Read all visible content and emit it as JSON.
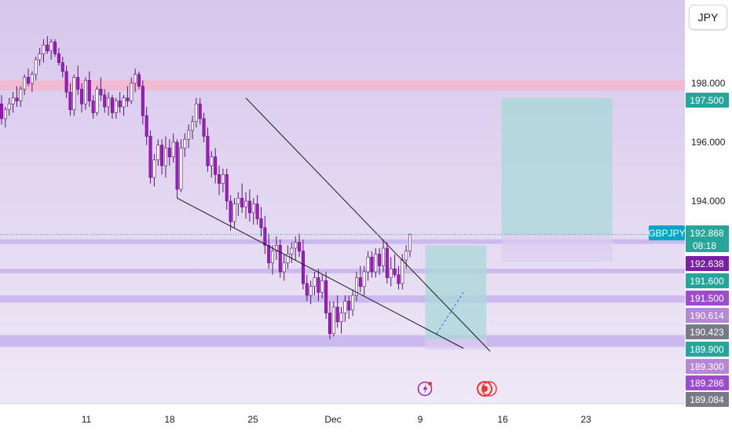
{
  "currency_button": "JPY",
  "symbol_label": "GBPJPY",
  "countdown": "08:18",
  "colors": {
    "background_top": "#d7c7ec",
    "background_bottom": "#efe8f7",
    "resistance_zone": "#f2b8cf",
    "support_band": "#c8b3eb",
    "bull_body": "#ffffff",
    "bear_body": "#a516c8",
    "wick": "#5a1670",
    "profit_zone": "#a8d8d8",
    "stop_zone": "#dccdf1",
    "last_price_line": "#26a69a",
    "price_badge": "#26a69a",
    "symbol_badge": "#00a6c8"
  },
  "chart_data": {
    "type": "candlestick",
    "symbol": "GBPJPY",
    "currency": "JPY",
    "y_axis": {
      "ticks": [
        198.0,
        196.0,
        194.0
      ],
      "tick_labels": [
        "198.000",
        "196.000",
        "194.000"
      ],
      "range": [
        188.9,
        200.7
      ]
    },
    "x_axis": {
      "tick_labels": [
        "11",
        "18",
        "25",
        "Dec",
        "9",
        "16",
        "23"
      ]
    },
    "candles_ohlc": [
      [
        197.3,
        197.6,
        196.6,
        196.8
      ],
      [
        196.8,
        197.2,
        196.5,
        197.1
      ],
      [
        197.1,
        197.5,
        196.9,
        197.3
      ],
      [
        197.3,
        197.7,
        197.0,
        197.5
      ],
      [
        197.5,
        197.9,
        197.2,
        197.4
      ],
      [
        197.4,
        197.9,
        197.2,
        197.8
      ],
      [
        197.8,
        198.3,
        197.6,
        198.2
      ],
      [
        198.2,
        198.5,
        197.9,
        198.0
      ],
      [
        198.0,
        198.4,
        197.7,
        198.3
      ],
      [
        198.3,
        198.9,
        198.1,
        198.8
      ],
      [
        198.8,
        199.2,
        198.6,
        199.0
      ],
      [
        199.0,
        199.5,
        198.7,
        199.3
      ],
      [
        199.3,
        199.6,
        199.0,
        199.1
      ],
      [
        199.1,
        199.5,
        198.8,
        199.4
      ],
      [
        199.4,
        199.5,
        198.9,
        199.0
      ],
      [
        199.0,
        199.2,
        198.6,
        198.7
      ],
      [
        198.7,
        198.9,
        198.2,
        198.4
      ],
      [
        198.4,
        198.6,
        197.5,
        197.7
      ],
      [
        197.7,
        198.0,
        196.9,
        197.1
      ],
      [
        197.1,
        198.3,
        196.9,
        198.2
      ],
      [
        198.2,
        198.6,
        197.6,
        197.8
      ],
      [
        197.8,
        198.0,
        197.0,
        197.3
      ],
      [
        197.3,
        198.2,
        197.1,
        198.1
      ],
      [
        198.1,
        198.4,
        197.2,
        197.4
      ],
      [
        197.4,
        197.6,
        196.8,
        197.0
      ],
      [
        197.0,
        197.9,
        196.9,
        197.8
      ],
      [
        197.8,
        198.2,
        197.4,
        197.6
      ],
      [
        197.6,
        197.8,
        197.0,
        197.2
      ],
      [
        197.2,
        197.7,
        196.9,
        197.5
      ],
      [
        197.5,
        197.6,
        196.8,
        197.0
      ],
      [
        197.0,
        197.5,
        196.8,
        197.4
      ],
      [
        197.4,
        197.7,
        197.0,
        197.2
      ],
      [
        197.2,
        197.6,
        196.9,
        197.5
      ],
      [
        197.5,
        197.9,
        197.2,
        197.4
      ],
      [
        197.4,
        198.2,
        197.3,
        198.0
      ],
      [
        198.0,
        198.5,
        197.7,
        198.3
      ],
      [
        198.3,
        198.4,
        197.8,
        197.9
      ],
      [
        197.9,
        198.1,
        196.6,
        196.9
      ],
      [
        196.9,
        197.2,
        195.9,
        196.2
      ],
      [
        196.2,
        196.4,
        194.6,
        194.8
      ],
      [
        194.8,
        195.6,
        194.5,
        195.4
      ],
      [
        195.4,
        196.1,
        195.2,
        195.9
      ],
      [
        195.9,
        196.1,
        194.9,
        195.2
      ],
      [
        195.2,
        196.2,
        194.8,
        195.8
      ],
      [
        195.8,
        196.1,
        195.2,
        195.5
      ],
      [
        195.5,
        196.3,
        195.3,
        196.0
      ],
      [
        196.0,
        196.1,
        194.1,
        194.4
      ],
      [
        194.4,
        196.1,
        194.3,
        195.8
      ],
      [
        195.8,
        196.3,
        195.5,
        196.1
      ],
      [
        196.1,
        196.6,
        195.8,
        196.4
      ],
      [
        196.4,
        196.9,
        196.1,
        196.7
      ],
      [
        196.7,
        197.5,
        196.5,
        197.3
      ],
      [
        197.3,
        197.5,
        196.6,
        196.8
      ],
      [
        196.8,
        197.0,
        196.0,
        196.2
      ],
      [
        196.2,
        196.5,
        195.0,
        195.2
      ],
      [
        195.2,
        195.7,
        194.8,
        195.5
      ],
      [
        195.5,
        195.8,
        194.6,
        194.9
      ],
      [
        194.9,
        195.2,
        194.2,
        194.6
      ],
      [
        194.6,
        195.1,
        194.3,
        194.9
      ],
      [
        194.9,
        195.1,
        193.7,
        194.0
      ],
      [
        194.0,
        194.2,
        193.0,
        193.3
      ],
      [
        193.3,
        194.1,
        193.1,
        193.9
      ],
      [
        193.9,
        194.3,
        193.5,
        194.1
      ],
      [
        194.1,
        194.6,
        193.6,
        193.8
      ],
      [
        193.8,
        194.3,
        193.4,
        194.0
      ],
      [
        194.0,
        194.4,
        193.3,
        193.6
      ],
      [
        193.6,
        194.1,
        193.2,
        193.9
      ],
      [
        193.9,
        194.2,
        193.2,
        193.4
      ],
      [
        193.4,
        193.8,
        192.8,
        193.1
      ],
      [
        193.1,
        193.5,
        192.2,
        192.5
      ],
      [
        192.5,
        192.9,
        191.7,
        191.9
      ],
      [
        191.9,
        192.5,
        191.5,
        192.3
      ],
      [
        192.3,
        192.8,
        192.0,
        192.5
      ],
      [
        192.5,
        192.7,
        191.4,
        191.6
      ],
      [
        191.6,
        192.2,
        191.3,
        191.9
      ],
      [
        191.9,
        192.5,
        191.7,
        192.2
      ],
      [
        192.2,
        192.6,
        191.9,
        192.4
      ],
      [
        192.4,
        192.8,
        192.0,
        192.6
      ],
      [
        192.6,
        192.9,
        192.1,
        192.3
      ],
      [
        192.3,
        192.7,
        191.0,
        191.2
      ],
      [
        191.2,
        191.5,
        190.6,
        190.8
      ],
      [
        190.8,
        191.3,
        190.5,
        191.1
      ],
      [
        191.1,
        191.6,
        190.8,
        191.4
      ],
      [
        191.4,
        191.7,
        190.6,
        190.9
      ],
      [
        190.9,
        191.5,
        190.7,
        191.3
      ],
      [
        191.3,
        191.6,
        190.0,
        190.2
      ],
      [
        190.2,
        190.6,
        189.3,
        189.5
      ],
      [
        189.5,
        190.6,
        189.4,
        190.4
      ],
      [
        190.4,
        190.8,
        189.7,
        189.9
      ],
      [
        189.9,
        190.4,
        189.5,
        190.2
      ],
      [
        190.2,
        190.8,
        189.9,
        190.6
      ],
      [
        190.6,
        190.8,
        190.0,
        190.3
      ],
      [
        190.3,
        191.0,
        190.1,
        190.8
      ],
      [
        190.8,
        191.6,
        190.6,
        191.4
      ],
      [
        191.4,
        191.8,
        190.9,
        191.1
      ],
      [
        191.1,
        191.8,
        190.8,
        191.6
      ],
      [
        191.6,
        192.3,
        191.3,
        192.1
      ],
      [
        192.1,
        192.3,
        191.4,
        191.6
      ],
      [
        191.6,
        192.4,
        191.4,
        192.2
      ],
      [
        192.2,
        192.4,
        191.5,
        191.8
      ],
      [
        191.8,
        192.7,
        191.6,
        192.4
      ],
      [
        192.4,
        192.6,
        191.2,
        191.4
      ],
      [
        191.4,
        192.1,
        191.1,
        191.7
      ],
      [
        191.7,
        192.2,
        191.4,
        191.5
      ],
      [
        191.5,
        191.8,
        191.0,
        191.2
      ],
      [
        191.2,
        192.2,
        191.0,
        192.0
      ],
      [
        192.0,
        192.5,
        191.7,
        192.3
      ],
      [
        192.3,
        192.9,
        192.1,
        192.87
      ]
    ],
    "resistance_zone": [
      197.75,
      198.1
    ],
    "support_bands": [
      [
        192.55,
        192.7
      ],
      [
        191.55,
        191.7
      ],
      [
        190.55,
        190.8
      ],
      [
        189.05,
        189.45
      ]
    ],
    "trendlines": [
      {
        "name": "upper",
        "from": [
          64,
          197.5
        ],
        "to": [
          128,
          188.9
        ]
      },
      {
        "name": "lower",
        "from": [
          46,
          194.1
        ],
        "to": [
          121,
          189.0
        ]
      }
    ],
    "dashed_line": {
      "from": [
        114,
        189.5
      ],
      "to": [
        121,
        190.9
      ]
    },
    "position_zones": [
      {
        "name": "profit",
        "x_range": [
          131,
          160
        ],
        "y_range": [
          192.87,
          197.5
        ]
      },
      {
        "name": "stop",
        "x_range": [
          131,
          160
        ],
        "y_range": [
          191.95,
          192.87
        ]
      },
      {
        "name": "entry_box_profit",
        "x_range": [
          111,
          127
        ],
        "y_range": [
          189.3,
          192.5
        ]
      },
      {
        "name": "entry_box_stop",
        "x_range": [
          111,
          127
        ],
        "y_range": [
          188.95,
          189.3
        ]
      }
    ],
    "price_labels": [
      {
        "text": "197.500",
        "kind": "green"
      },
      {
        "text": "192.868",
        "kind": "current"
      },
      {
        "text": "192.638",
        "kind": "purple-dark"
      },
      {
        "text": "191.600",
        "kind": "green"
      },
      {
        "text": "191.500",
        "kind": "purple"
      },
      {
        "text": "190.614",
        "kind": "purple-light"
      },
      {
        "text": "190.423",
        "kind": "gray"
      },
      {
        "text": "189.900",
        "kind": "green"
      },
      {
        "text": "189.300",
        "kind": "purple-light"
      },
      {
        "text": "189.286",
        "kind": "purple"
      },
      {
        "text": "189.084",
        "kind": "gray"
      }
    ]
  }
}
